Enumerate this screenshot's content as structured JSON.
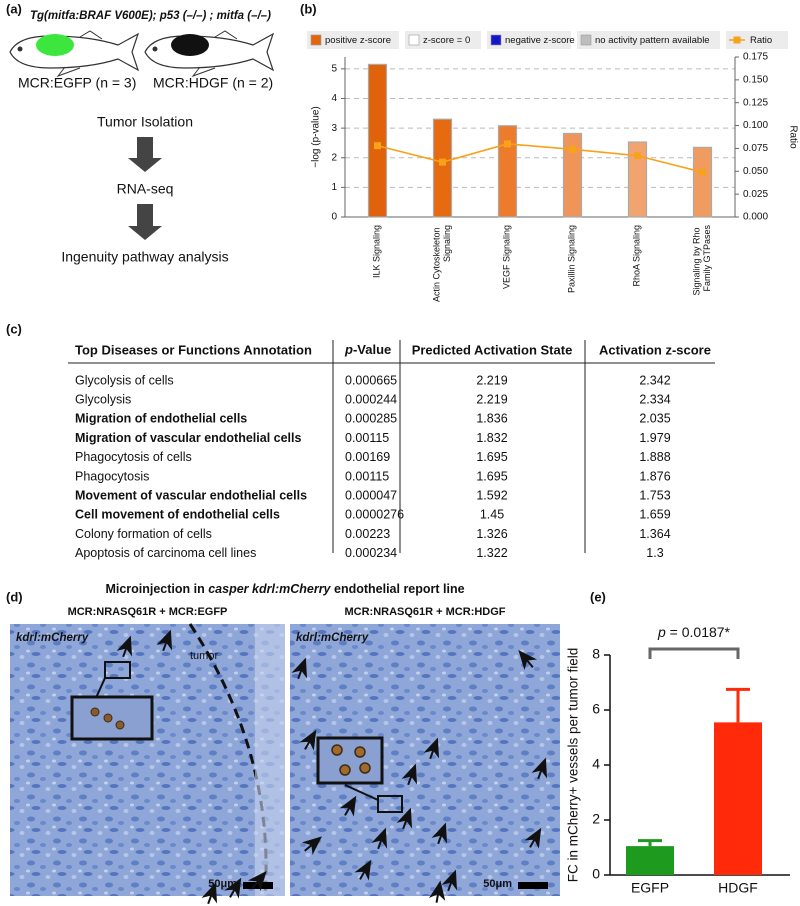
{
  "panel_labels": [
    "(a)",
    "(b)",
    "(c)",
    "(d)",
    "(e)"
  ],
  "diagram": {
    "genotype": "Tg(mitfa:BRAF V600E); p53 (–/–) ; mitfa (–/–)",
    "groups": [
      "MCR:EGFP (n = 3)",
      "MCR:HDGF (n = 2)"
    ],
    "group_colors": [
      "#3ce63c",
      "#111111"
    ],
    "steps": [
      "Tumor Isolation",
      "RNA-seq",
      "Ingenuity pathway analysis"
    ]
  },
  "chart_data": [
    {
      "type": "bar",
      "ylabel": "−log (p-value)",
      "y2label": "Ratio",
      "categories": [
        "ILK Signaling",
        "Actin Cytoskeleton Signaling",
        "VEGF Signaling",
        "Paxillin Signaling",
        "RhoA Signaling",
        "Signaling by Rho Family GTPases"
      ],
      "legend": [
        {
          "name": "positive z-score",
          "color": "#e3660d"
        },
        {
          "name": "z-score = 0",
          "color": "#ffffff"
        },
        {
          "name": "negative z-score",
          "color": "#1414c8"
        },
        {
          "name": "no activity pattern available",
          "color": "#bdbdbd"
        }
      ],
      "series": [
        {
          "values": [
            5.15,
            3.3,
            3.08,
            2.82,
            2.53,
            2.35
          ],
          "colors": [
            "#e0620b",
            "#e56a10",
            "#ec7b2c",
            "#f0955a",
            "#f2a470",
            "#f09c60"
          ]
        },
        {
          "name": "Ratio",
          "color": "#f7a21b",
          "axis": "y2",
          "values": [
            0.078,
            0.06,
            0.08,
            0.074,
            0.067,
            0.049
          ]
        }
      ],
      "ylim": [
        0,
        5.4
      ],
      "yticks": [
        0,
        1,
        2,
        3,
        4,
        5
      ],
      "y2lim": [
        0,
        0.175
      ],
      "y2ticks": [
        {
          "value": 0,
          "label": "0.000"
        },
        {
          "value": 0.025,
          "label": "0.025"
        },
        {
          "value": 0.05,
          "label": "0.050"
        },
        {
          "value": 0.075,
          "label": "0.075"
        },
        {
          "value": 0.1,
          "label": "0.100"
        },
        {
          "value": 0.125,
          "label": "0.125"
        },
        {
          "value": 0.15,
          "label": "0.150"
        },
        {
          "value": 0.175,
          "label": "0.175"
        }
      ],
      "grid": true
    },
    {
      "type": "bar",
      "ylabel": "FC in mCherry+ vessels per tumor field",
      "categories": [
        "EGFP",
        "HDGF"
      ],
      "values": [
        1.05,
        5.55
      ],
      "errors": [
        0.2,
        1.2
      ],
      "colors": [
        "#1e9a1e",
        "#ff2a0a"
      ],
      "ylim": [
        0,
        8
      ],
      "yticks": [
        0,
        2,
        4,
        6,
        8
      ],
      "annotation": "p = 0.0187*"
    }
  ],
  "table": {
    "header": [
      "Top Diseases or Functions Annotation",
      "p-Value",
      "Predicted Activation State",
      "Activation z-score"
    ],
    "rows": [
      [
        "Glycolysis of cells",
        "0.000665",
        "2.219",
        "2.342"
      ],
      [
        "Glycolysis",
        "0.000244",
        "2.219",
        "2.334"
      ],
      [
        "Migration of endothelial cells",
        "0.000285",
        "1.836",
        "2.035"
      ],
      [
        "Migration of vascular endothelial cells",
        "0.00115",
        "1.832",
        "1.979"
      ],
      [
        "Phagocytosis of cells",
        "0.00169",
        "1.695",
        "1.888"
      ],
      [
        "Phagocytosis",
        "0.00115",
        "1.695",
        "1.876"
      ],
      [
        "Movement of vascular endothelial cells",
        "0.000047",
        "1.592",
        "1.753"
      ],
      [
        "Cell movement of endothelial cells",
        "0.0000276",
        "1.45",
        "1.659"
      ],
      [
        "Colony formation of cells",
        "0.00223",
        "1.326",
        "1.364"
      ],
      [
        "Apoptosis of carcinoma cell lines",
        "0.000234",
        "1.322",
        "1.3"
      ]
    ],
    "highlighted_rows": [
      2,
      3,
      6,
      7
    ],
    "highlight_color": "#e8201b"
  },
  "micrographs": {
    "title_parts": [
      "Microinjection in ",
      "casper kdrl:mCherry",
      "  endothelial report line"
    ],
    "panels": [
      {
        "condition": "MCR:NRASQ61R + MCR:EGFP",
        "stain": "kdrl:mCherry",
        "region": "tumor",
        "scale_bar": "50μm"
      },
      {
        "condition": "MCR:NRASQ61R + MCR:HDGF",
        "stain": "kdrl:mCherry",
        "scale_bar": "50μm"
      }
    ]
  }
}
